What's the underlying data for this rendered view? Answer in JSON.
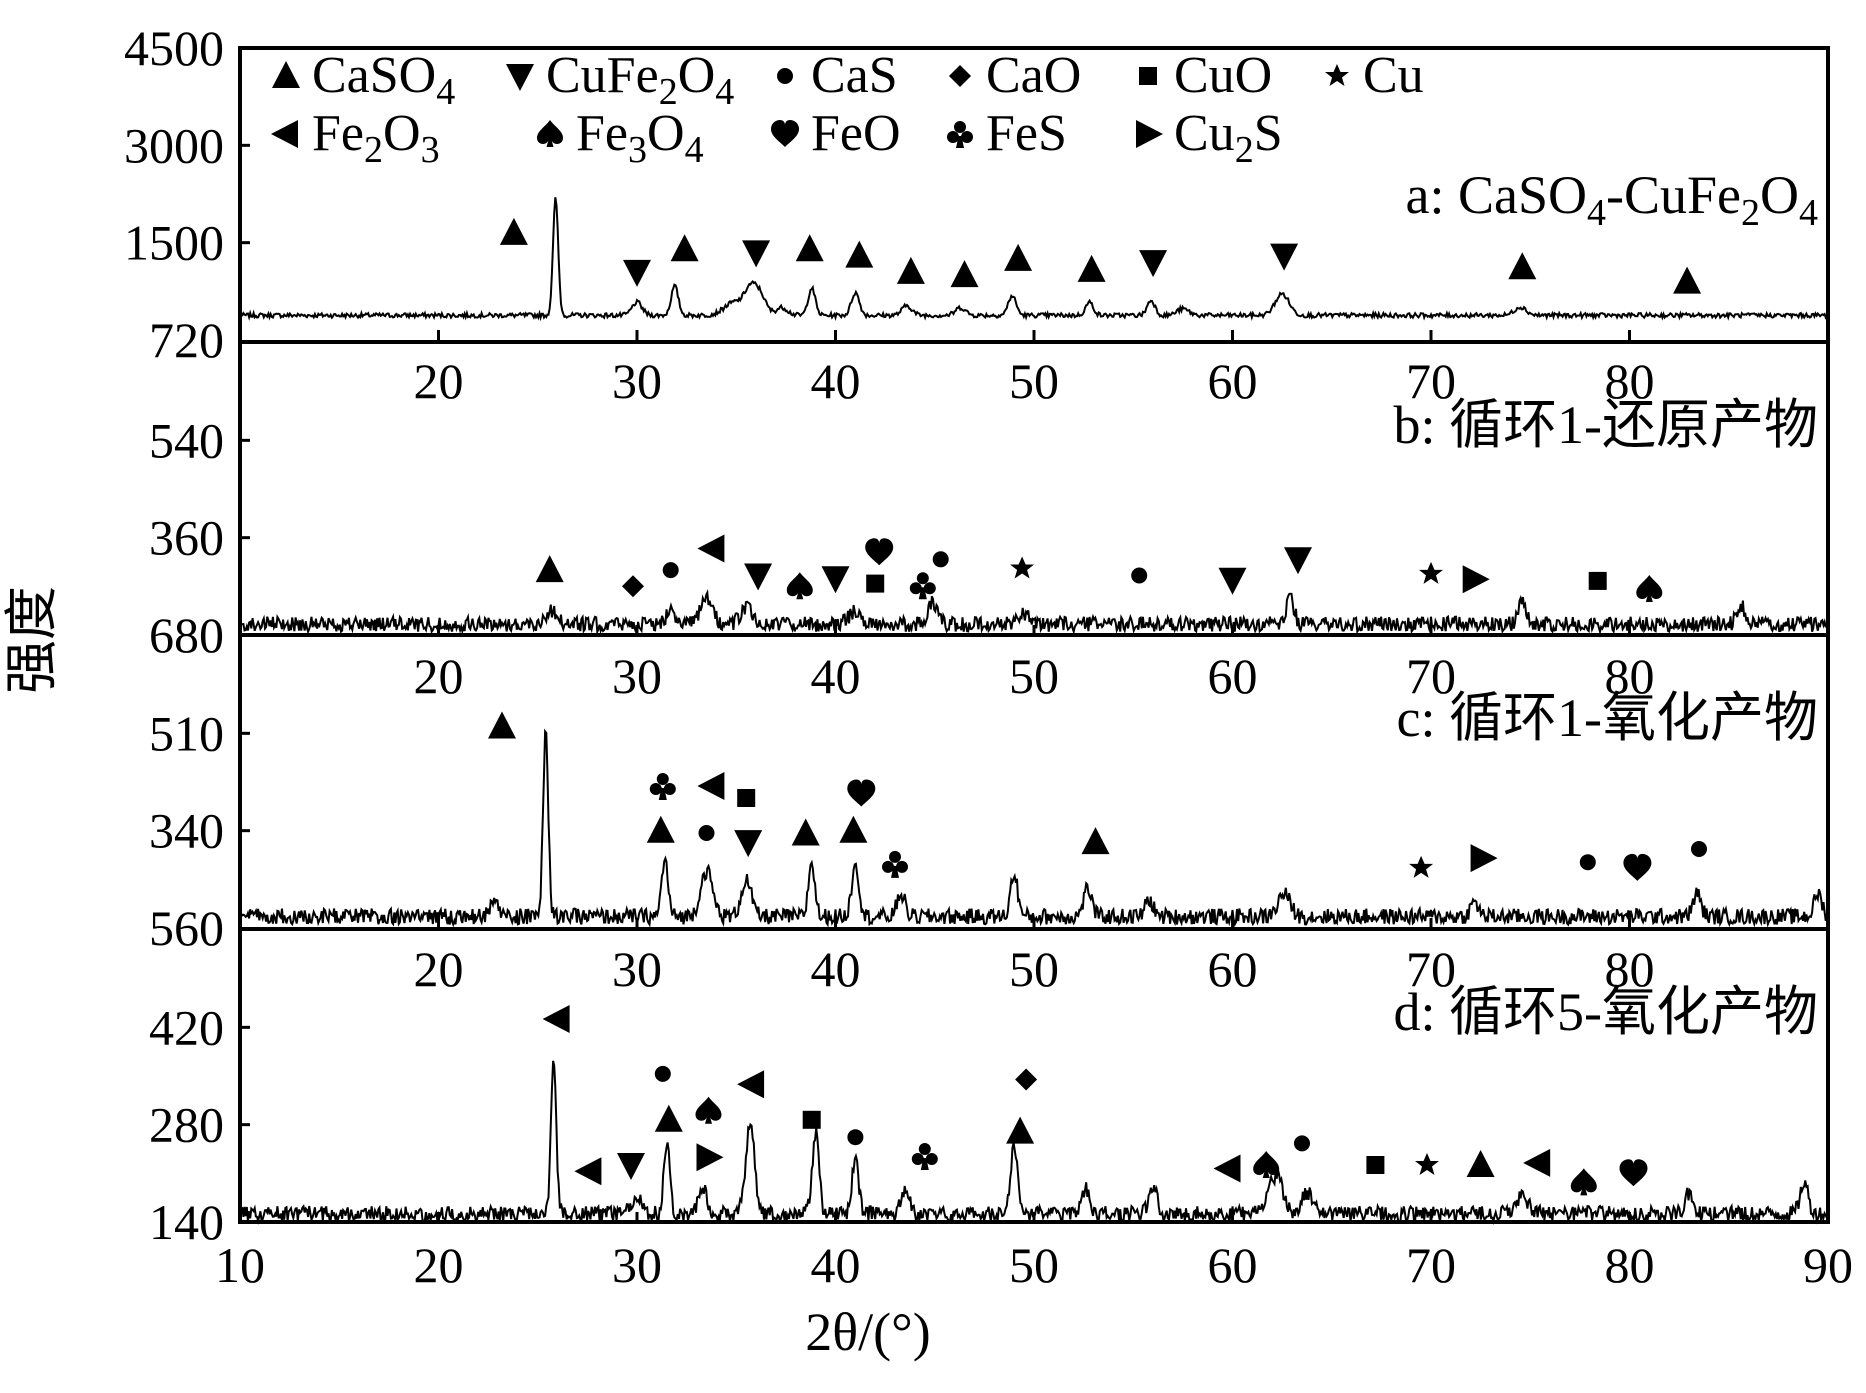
{
  "chart_data": {
    "type": "line",
    "xlabel": "2θ/(°)",
    "ylabel": "强度",
    "x_range": [
      10,
      90
    ],
    "x_ticks": [
      10,
      20,
      30,
      40,
      50,
      60,
      70,
      80,
      90
    ],
    "inner_x_ticks": [
      20,
      30,
      40,
      50,
      60,
      70,
      80
    ],
    "grid": false,
    "legend": {
      "placement": "top-left inside panel a",
      "entries": [
        {
          "symbol": "triangle-up",
          "label": "CaSO4",
          "parts": [
            {
              "t": "CaSO"
            },
            {
              "t": "4",
              "sub": true
            }
          ]
        },
        {
          "symbol": "triangle-down",
          "label": "CuFe2O4",
          "parts": [
            {
              "t": "CuFe"
            },
            {
              "t": "2",
              "sub": true
            },
            {
              "t": "O"
            },
            {
              "t": "4",
              "sub": true
            }
          ]
        },
        {
          "symbol": "circle",
          "label": "CaS",
          "parts": [
            {
              "t": "CaS"
            }
          ]
        },
        {
          "symbol": "diamond",
          "label": "CaO",
          "parts": [
            {
              "t": "CaO"
            }
          ]
        },
        {
          "symbol": "square",
          "label": "CuO",
          "parts": [
            {
              "t": "CuO"
            }
          ]
        },
        {
          "symbol": "star",
          "label": "Cu",
          "parts": [
            {
              "t": "Cu"
            }
          ]
        },
        {
          "symbol": "triangle-left",
          "label": "Fe2O3",
          "parts": [
            {
              "t": "Fe"
            },
            {
              "t": "2",
              "sub": true
            },
            {
              "t": "O"
            },
            {
              "t": "3",
              "sub": true
            }
          ]
        },
        {
          "symbol": "spade",
          "label": "Fe3O4",
          "parts": [
            {
              "t": "Fe"
            },
            {
              "t": "3",
              "sub": true
            },
            {
              "t": "O"
            },
            {
              "t": "4",
              "sub": true
            }
          ]
        },
        {
          "symbol": "heart",
          "label": "FeO",
          "parts": [
            {
              "t": "FeO"
            }
          ]
        },
        {
          "symbol": "club",
          "label": "FeS",
          "parts": [
            {
              "t": "FeS"
            }
          ]
        },
        {
          "symbol": "triangle-right",
          "label": "Cu2S",
          "parts": [
            {
              "t": "Cu"
            },
            {
              "t": "2",
              "sub": true
            },
            {
              "t": "S"
            }
          ]
        }
      ]
    },
    "panels": [
      {
        "id": "a",
        "label": "a: CaSO4-CuFe2O4",
        "label_parts": [
          {
            "t": "a: CaSO"
          },
          {
            "t": "4",
            "sub": true
          },
          {
            "t": "-CuFe"
          },
          {
            "t": "2",
            "sub": true
          },
          {
            "t": "O"
          },
          {
            "t": "4",
            "sub": true
          }
        ],
        "y_ticks": [
          4500,
          3000,
          1500
        ],
        "bottom_label": "720",
        "y_range": [
          0,
          4500
        ],
        "baseline": 380,
        "noise": 35,
        "peaks": [
          {
            "x": 25.9,
            "h": 1800,
            "w": 0.13
          },
          {
            "x": 30.0,
            "h": 200,
            "w": 0.25
          },
          {
            "x": 31.9,
            "h": 450,
            "w": 0.18
          },
          {
            "x": 34.9,
            "h": 200,
            "w": 0.5
          },
          {
            "x": 35.7,
            "h": 350,
            "w": 0.3
          },
          {
            "x": 36.2,
            "h": 300,
            "w": 0.3
          },
          {
            "x": 37.3,
            "h": 120,
            "w": 0.3
          },
          {
            "x": 38.8,
            "h": 420,
            "w": 0.18
          },
          {
            "x": 41.0,
            "h": 350,
            "w": 0.2
          },
          {
            "x": 43.6,
            "h": 150,
            "w": 0.25
          },
          {
            "x": 46.3,
            "h": 120,
            "w": 0.25
          },
          {
            "x": 48.9,
            "h": 300,
            "w": 0.2
          },
          {
            "x": 52.8,
            "h": 200,
            "w": 0.2
          },
          {
            "x": 55.9,
            "h": 230,
            "w": 0.2
          },
          {
            "x": 57.5,
            "h": 100,
            "w": 0.3
          },
          {
            "x": 62.5,
            "h": 330,
            "w": 0.35
          },
          {
            "x": 74.5,
            "h": 130,
            "w": 0.3
          }
        ],
        "markers": [
          {
            "symbol": "triangle-up",
            "x": 23.8,
            "y": 1650
          },
          {
            "symbol": "triangle-down",
            "x": 30.0,
            "y": 1050
          },
          {
            "symbol": "triangle-up",
            "x": 32.4,
            "y": 1400
          },
          {
            "symbol": "triangle-down",
            "x": 36.0,
            "y": 1350
          },
          {
            "symbol": "triangle-up",
            "x": 38.7,
            "y": 1400
          },
          {
            "symbol": "triangle-up",
            "x": 41.2,
            "y": 1300
          },
          {
            "symbol": "triangle-up",
            "x": 43.8,
            "y": 1050
          },
          {
            "symbol": "triangle-up",
            "x": 46.5,
            "y": 1000
          },
          {
            "symbol": "triangle-up",
            "x": 49.2,
            "y": 1250
          },
          {
            "symbol": "triangle-up",
            "x": 52.9,
            "y": 1080
          },
          {
            "symbol": "triangle-down",
            "x": 56.0,
            "y": 1200
          },
          {
            "symbol": "triangle-down",
            "x": 62.6,
            "y": 1300
          },
          {
            "symbol": "triangle-up",
            "x": 74.6,
            "y": 1120
          },
          {
            "symbol": "triangle-up",
            "x": 82.9,
            "y": 900
          }
        ]
      },
      {
        "id": "b",
        "label": "b: 循环1-还原产物",
        "label_parts": [
          {
            "t": "b: 循环1-还原产物"
          }
        ],
        "y_ticks": [
          540,
          360
        ],
        "bottom_label": "680",
        "y_range": [
          180,
          720
        ],
        "baseline": 200,
        "noise": 14,
        "peaks": [
          {
            "x": 25.7,
            "h": 25,
            "w": 0.3
          },
          {
            "x": 31.7,
            "h": 35,
            "w": 0.2
          },
          {
            "x": 33.5,
            "h": 45,
            "w": 0.3
          },
          {
            "x": 35.5,
            "h": 30,
            "w": 0.3
          },
          {
            "x": 41.0,
            "h": 25,
            "w": 0.3
          },
          {
            "x": 44.9,
            "h": 40,
            "w": 0.25
          },
          {
            "x": 49.5,
            "h": 20,
            "w": 0.3
          },
          {
            "x": 62.9,
            "h": 45,
            "w": 0.2
          },
          {
            "x": 74.6,
            "h": 45,
            "w": 0.2
          },
          {
            "x": 85.6,
            "h": 35,
            "w": 0.2
          }
        ],
        "markers": [
          {
            "symbol": "triangle-up",
            "x": 25.6,
            "y": 300
          },
          {
            "symbol": "diamond",
            "x": 29.8,
            "y": 270
          },
          {
            "symbol": "circle",
            "x": 31.7,
            "y": 300
          },
          {
            "symbol": "triangle-left",
            "x": 33.8,
            "y": 340
          },
          {
            "symbol": "triangle-down",
            "x": 36.1,
            "y": 290
          },
          {
            "symbol": "spade",
            "x": 38.2,
            "y": 270
          },
          {
            "symbol": "triangle-down",
            "x": 40.0,
            "y": 285
          },
          {
            "symbol": "square",
            "x": 42.0,
            "y": 275
          },
          {
            "symbol": "heart",
            "x": 42.2,
            "y": 333
          },
          {
            "symbol": "club",
            "x": 44.4,
            "y": 272
          },
          {
            "symbol": "circle",
            "x": 45.3,
            "y": 320
          },
          {
            "symbol": "star",
            "x": 49.4,
            "y": 303
          },
          {
            "symbol": "circle",
            "x": 55.3,
            "y": 290
          },
          {
            "symbol": "triangle-down",
            "x": 60.0,
            "y": 282
          },
          {
            "symbol": "triangle-down",
            "x": 63.3,
            "y": 320
          },
          {
            "symbol": "star",
            "x": 70.0,
            "y": 293
          },
          {
            "symbol": "triangle-right",
            "x": 72.2,
            "y": 283
          },
          {
            "symbol": "square",
            "x": 78.4,
            "y": 280
          },
          {
            "symbol": "spade",
            "x": 81.0,
            "y": 265
          }
        ]
      },
      {
        "id": "c",
        "label": "c: 循环1-氧化产物",
        "label_parts": [
          {
            "t": "c: 循环1-氧化产物"
          }
        ],
        "y_ticks": [
          510,
          340
        ],
        "bottom_label": "560",
        "y_range": [
          170,
          680
        ],
        "baseline": 190,
        "noise": 14,
        "peaks": [
          {
            "x": 22.8,
            "h": 30,
            "w": 0.2
          },
          {
            "x": 25.4,
            "h": 320,
            "w": 0.13
          },
          {
            "x": 31.4,
            "h": 100,
            "w": 0.16
          },
          {
            "x": 33.5,
            "h": 80,
            "w": 0.3
          },
          {
            "x": 35.5,
            "h": 65,
            "w": 0.25
          },
          {
            "x": 38.8,
            "h": 95,
            "w": 0.16
          },
          {
            "x": 41.0,
            "h": 95,
            "w": 0.18
          },
          {
            "x": 43.3,
            "h": 40,
            "w": 0.2
          },
          {
            "x": 49.0,
            "h": 75,
            "w": 0.18
          },
          {
            "x": 52.7,
            "h": 50,
            "w": 0.2
          },
          {
            "x": 55.8,
            "h": 30,
            "w": 0.2
          },
          {
            "x": 62.6,
            "h": 40,
            "w": 0.3
          },
          {
            "x": 72.2,
            "h": 25,
            "w": 0.2
          },
          {
            "x": 83.4,
            "h": 40,
            "w": 0.2
          },
          {
            "x": 89.5,
            "h": 40,
            "w": 0.2
          }
        ],
        "markers": [
          {
            "symbol": "triangle-up",
            "x": 23.2,
            "y": 522
          },
          {
            "symbol": "club",
            "x": 31.3,
            "y": 418
          },
          {
            "symbol": "triangle-left",
            "x": 33.8,
            "y": 418
          },
          {
            "symbol": "square",
            "x": 35.5,
            "y": 397
          },
          {
            "symbol": "triangle-up",
            "x": 31.2,
            "y": 340
          },
          {
            "symbol": "circle",
            "x": 33.5,
            "y": 336
          },
          {
            "symbol": "triangle-down",
            "x": 35.6,
            "y": 320
          },
          {
            "symbol": "triangle-up",
            "x": 38.5,
            "y": 335
          },
          {
            "symbol": "heart",
            "x": 41.3,
            "y": 405
          },
          {
            "symbol": "triangle-up",
            "x": 40.9,
            "y": 340
          },
          {
            "symbol": "club",
            "x": 43.0,
            "y": 282
          },
          {
            "symbol": "triangle-up",
            "x": 53.1,
            "y": 320
          },
          {
            "symbol": "star",
            "x": 69.5,
            "y": 275
          },
          {
            "symbol": "triangle-right",
            "x": 72.6,
            "y": 292
          },
          {
            "symbol": "circle",
            "x": 77.9,
            "y": 285
          },
          {
            "symbol": "heart",
            "x": 80.4,
            "y": 275
          },
          {
            "symbol": "circle",
            "x": 83.5,
            "y": 308
          }
        ]
      },
      {
        "id": "d",
        "label": "d: 循环5-氧化产物",
        "label_parts": [
          {
            "t": "d: 循环5-氧化产物"
          }
        ],
        "y_ticks": [
          420,
          280,
          140
        ],
        "bottom_label": "",
        "y_range": [
          140,
          560
        ],
        "baseline": 152,
        "noise": 11,
        "peaks": [
          {
            "x": 25.8,
            "h": 228,
            "w": 0.13
          },
          {
            "x": 30.0,
            "h": 25,
            "w": 0.25
          },
          {
            "x": 31.5,
            "h": 105,
            "w": 0.15
          },
          {
            "x": 33.3,
            "h": 40,
            "w": 0.2
          },
          {
            "x": 35.7,
            "h": 130,
            "w": 0.22
          },
          {
            "x": 39.0,
            "h": 115,
            "w": 0.17
          },
          {
            "x": 41.0,
            "h": 75,
            "w": 0.17
          },
          {
            "x": 43.5,
            "h": 35,
            "w": 0.2
          },
          {
            "x": 49.0,
            "h": 100,
            "w": 0.17
          },
          {
            "x": 52.6,
            "h": 35,
            "w": 0.2
          },
          {
            "x": 56.0,
            "h": 40,
            "w": 0.2
          },
          {
            "x": 62.2,
            "h": 55,
            "w": 0.35
          },
          {
            "x": 63.8,
            "h": 30,
            "w": 0.3
          },
          {
            "x": 74.6,
            "h": 25,
            "w": 0.3
          },
          {
            "x": 83.0,
            "h": 30,
            "w": 0.2
          },
          {
            "x": 88.8,
            "h": 45,
            "w": 0.2
          }
        ],
        "markers": [
          {
            "symbol": "triangle-left",
            "x": 26.0,
            "y": 432
          },
          {
            "symbol": "triangle-left",
            "x": 27.6,
            "y": 213
          },
          {
            "symbol": "triangle-down",
            "x": 29.7,
            "y": 222
          },
          {
            "symbol": "circle",
            "x": 31.3,
            "y": 353
          },
          {
            "symbol": "triangle-up",
            "x": 31.6,
            "y": 287
          },
          {
            "symbol": "triangle-right",
            "x": 33.6,
            "y": 233
          },
          {
            "symbol": "spade",
            "x": 33.6,
            "y": 300
          },
          {
            "symbol": "triangle-left",
            "x": 35.8,
            "y": 338
          },
          {
            "symbol": "square",
            "x": 38.8,
            "y": 287
          },
          {
            "symbol": "circle",
            "x": 41.0,
            "y": 262
          },
          {
            "symbol": "club",
            "x": 44.5,
            "y": 235
          },
          {
            "symbol": "triangle-up",
            "x": 49.3,
            "y": 270
          },
          {
            "symbol": "diamond",
            "x": 49.6,
            "y": 345
          },
          {
            "symbol": "triangle-left",
            "x": 59.8,
            "y": 217
          },
          {
            "symbol": "spade",
            "x": 61.7,
            "y": 222
          },
          {
            "symbol": "circle",
            "x": 63.5,
            "y": 253
          },
          {
            "symbol": "square",
            "x": 67.2,
            "y": 222
          },
          {
            "symbol": "star",
            "x": 69.8,
            "y": 222
          },
          {
            "symbol": "triangle-up",
            "x": 72.5,
            "y": 222
          },
          {
            "symbol": "triangle-left",
            "x": 75.4,
            "y": 225
          },
          {
            "symbol": "spade",
            "x": 77.7,
            "y": 197
          },
          {
            "symbol": "heart",
            "x": 80.2,
            "y": 210
          }
        ]
      }
    ]
  }
}
